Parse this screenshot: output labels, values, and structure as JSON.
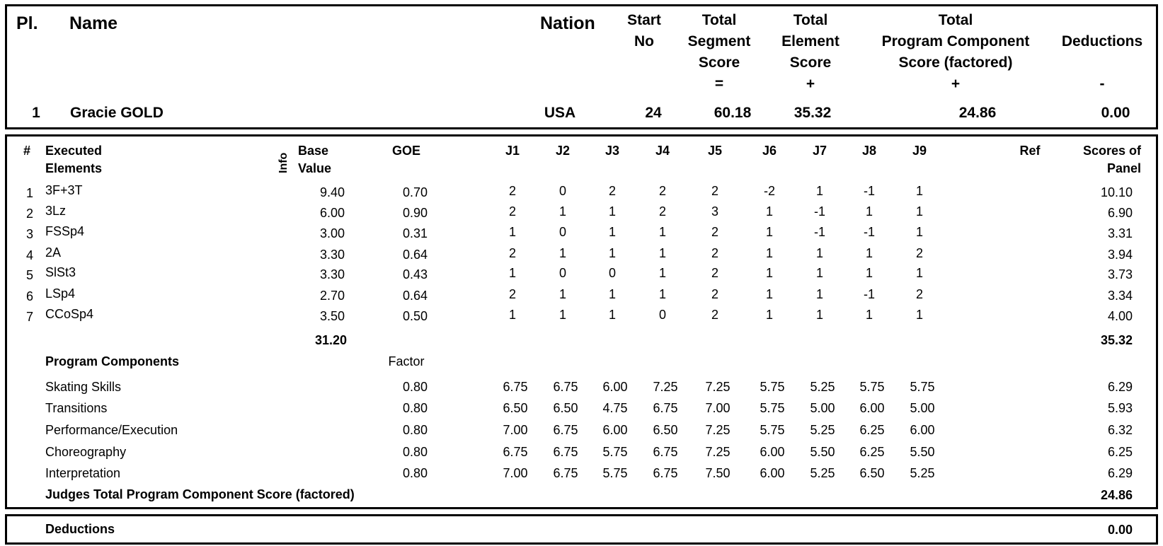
{
  "header": {
    "pl_label": "Pl.",
    "name_label": "Name",
    "nation_label": "Nation",
    "start_no_label": [
      "Start",
      "No"
    ],
    "tss_label": [
      "Total",
      "Segment",
      "Score",
      "="
    ],
    "tes_label": [
      "Total",
      "Element",
      "Score",
      "+"
    ],
    "pcs_label": [
      "Total",
      "Program Component",
      "Score (factored)",
      "+"
    ],
    "ded_label": [
      "Deductions",
      "-"
    ]
  },
  "skater": {
    "place": "1",
    "name": "Gracie GOLD",
    "nation": "USA",
    "start_no": "24",
    "tss": "60.18",
    "tes": "35.32",
    "pcs": "24.86",
    "deductions": "0.00"
  },
  "elements_header": {
    "num": "#",
    "executed": [
      "Executed",
      "Elements"
    ],
    "info": "Info",
    "base_value": [
      "Base",
      "Value"
    ],
    "goe": "GOE",
    "judges": [
      "J1",
      "J2",
      "J3",
      "J4",
      "J5",
      "J6",
      "J7",
      "J8",
      "J9"
    ],
    "ref": "Ref",
    "scores_of_panel": [
      "Scores of",
      "Panel"
    ]
  },
  "elements": [
    {
      "num": "1",
      "name": "3F+3T",
      "bv": "9.40",
      "goe": "0.70",
      "j": [
        "2",
        "0",
        "2",
        "2",
        "2",
        "-2",
        "1",
        "-1",
        "1"
      ],
      "panel": "10.10"
    },
    {
      "num": "2",
      "name": "3Lz",
      "bv": "6.00",
      "goe": "0.90",
      "j": [
        "2",
        "1",
        "1",
        "2",
        "3",
        "1",
        "-1",
        "1",
        "1"
      ],
      "panel": "6.90"
    },
    {
      "num": "3",
      "name": "FSSp4",
      "bv": "3.00",
      "goe": "0.31",
      "j": [
        "1",
        "0",
        "1",
        "1",
        "2",
        "1",
        "-1",
        "-1",
        "1"
      ],
      "panel": "3.31"
    },
    {
      "num": "4",
      "name": "2A",
      "bv": "3.30",
      "goe": "0.64",
      "j": [
        "2",
        "1",
        "1",
        "1",
        "2",
        "1",
        "1",
        "1",
        "2"
      ],
      "panel": "3.94"
    },
    {
      "num": "5",
      "name": "SlSt3",
      "bv": "3.30",
      "goe": "0.43",
      "j": [
        "1",
        "0",
        "0",
        "1",
        "2",
        "1",
        "1",
        "1",
        "1"
      ],
      "panel": "3.73"
    },
    {
      "num": "6",
      "name": "LSp4",
      "bv": "2.70",
      "goe": "0.64",
      "j": [
        "2",
        "1",
        "1",
        "1",
        "2",
        "1",
        "1",
        "-1",
        "2"
      ],
      "panel": "3.34"
    },
    {
      "num": "7",
      "name": "CCoSp4",
      "bv": "3.50",
      "goe": "0.50",
      "j": [
        "1",
        "1",
        "1",
        "0",
        "2",
        "1",
        "1",
        "1",
        "1"
      ],
      "panel": "4.00"
    }
  ],
  "elements_totals": {
    "bv": "31.20",
    "panel": "35.32"
  },
  "components_header": {
    "title": "Program Components",
    "factor": "Factor"
  },
  "components": [
    {
      "name": "Skating Skills",
      "factor": "0.80",
      "j": [
        "6.75",
        "6.75",
        "6.00",
        "7.25",
        "7.25",
        "5.75",
        "5.25",
        "5.75",
        "5.75"
      ],
      "panel": "6.29"
    },
    {
      "name": "Transitions",
      "factor": "0.80",
      "j": [
        "6.50",
        "6.50",
        "4.75",
        "6.75",
        "7.00",
        "5.75",
        "5.00",
        "6.00",
        "5.00"
      ],
      "panel": "5.93"
    },
    {
      "name": "Performance/Execution",
      "factor": "0.80",
      "j": [
        "7.00",
        "6.75",
        "6.00",
        "6.50",
        "7.25",
        "5.75",
        "5.25",
        "6.25",
        "6.00"
      ],
      "panel": "6.32"
    },
    {
      "name": "Choreography",
      "factor": "0.80",
      "j": [
        "6.75",
        "6.75",
        "5.75",
        "6.75",
        "7.25",
        "6.00",
        "5.50",
        "6.25",
        "5.50"
      ],
      "panel": "6.25"
    },
    {
      "name": "Interpretation",
      "factor": "0.80",
      "j": [
        "7.00",
        "6.75",
        "5.75",
        "6.75",
        "7.50",
        "6.00",
        "5.25",
        "6.50",
        "5.25"
      ],
      "panel": "6.29"
    }
  ],
  "components_total": {
    "label": "Judges Total Program Component Score (factored)",
    "value": "24.86"
  },
  "deductions_row": {
    "label": "Deductions",
    "value": "0.00"
  }
}
